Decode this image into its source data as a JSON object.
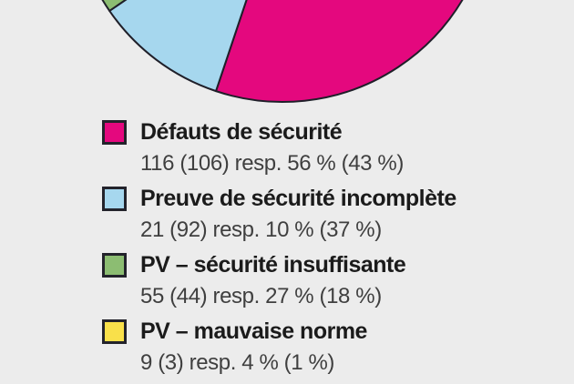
{
  "background_color": "#ececec",
  "chart_data": {
    "type": "pie",
    "legend_position": "bottom-left",
    "outline_color": "#1f1f29",
    "series": [
      {
        "label": "Défauts de sécurité",
        "value": 116,
        "value_prev": 106,
        "pct": 56,
        "pct_prev": 43,
        "value_text": "116 (106) resp. 56 % (43 %)",
        "color": "#e4087e"
      },
      {
        "label": "Preuve de sécurité incomplète",
        "value": 21,
        "value_prev": 92,
        "pct": 10,
        "pct_prev": 37,
        "value_text": "21 (92) resp. 10 % (37 %)",
        "color": "#a6d7ee"
      },
      {
        "label": "PV – sécurité insuffisante",
        "value": 55,
        "value_prev": 44,
        "pct": 27,
        "pct_prev": 18,
        "value_text": "55 (44) resp. 27 % (18 %)",
        "color": "#8cbd72"
      },
      {
        "label": "PV – mauvaise norme",
        "value": 9,
        "value_prev": 3,
        "pct": 4,
        "pct_prev": 1,
        "value_text": "9 (3) resp. 4 % (1 %)",
        "color": "#f9e04a"
      }
    ]
  }
}
